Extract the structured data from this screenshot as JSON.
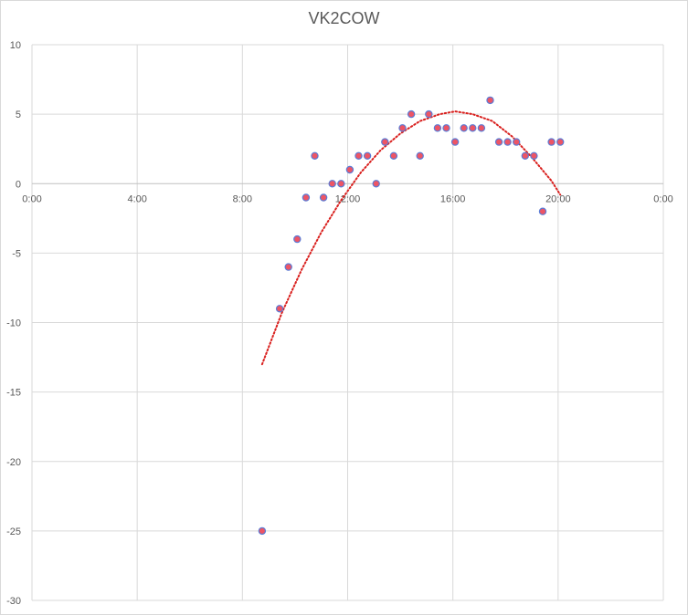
{
  "chart_data": {
    "type": "scatter",
    "title": "VK2COW",
    "xlabel": "",
    "ylabel": "",
    "x_tick_labels": [
      "0:00",
      "4:00",
      "8:00",
      "12:00",
      "16:00",
      "20:00",
      "0:00"
    ],
    "x_ticks_hours": [
      0,
      4,
      8,
      12,
      16,
      20,
      24
    ],
    "xlim_hours": [
      0,
      24
    ],
    "y_ticks": [
      10,
      5,
      0,
      -5,
      -10,
      -15,
      -20,
      -25,
      -30
    ],
    "ylim": [
      -30,
      10
    ],
    "grid": true,
    "series": [
      {
        "points": [
          [
            "8:45",
            -25
          ],
          [
            "9:25",
            -9
          ],
          [
            "9:45",
            -6
          ],
          [
            "10:05",
            -4
          ],
          [
            "10:25",
            -1
          ],
          [
            "10:45",
            2
          ],
          [
            "11:05",
            -1
          ],
          [
            "11:25",
            0
          ],
          [
            "11:45",
            0
          ],
          [
            "12:05",
            1
          ],
          [
            "12:25",
            2
          ],
          [
            "12:45",
            2
          ],
          [
            "13:05",
            0
          ],
          [
            "13:25",
            3
          ],
          [
            "13:45",
            2
          ],
          [
            "14:05",
            4
          ],
          [
            "14:25",
            5
          ],
          [
            "14:45",
            2
          ],
          [
            "15:05",
            5
          ],
          [
            "15:25",
            4
          ],
          [
            "15:45",
            4
          ],
          [
            "16:05",
            3
          ],
          [
            "16:25",
            4
          ],
          [
            "16:45",
            4
          ],
          [
            "17:05",
            4
          ],
          [
            "17:25",
            6
          ],
          [
            "17:45",
            3
          ],
          [
            "18:05",
            3
          ],
          [
            "18:25",
            3
          ],
          [
            "18:45",
            2
          ],
          [
            "19:05",
            2
          ],
          [
            "19:25",
            -2
          ],
          [
            "19:45",
            3
          ],
          [
            "20:05",
            3
          ]
        ],
        "marker_fill": "#ed5565",
        "marker_edge": "#5b7bd5"
      }
    ],
    "trendline": {
      "type": "polynomial",
      "style": "dotted",
      "color": "#d9201e",
      "points": [
        [
          "8:45",
          -13
        ],
        [
          "9:30",
          -9.3
        ],
        [
          "10:15",
          -6.2
        ],
        [
          "11:00",
          -3.5
        ],
        [
          "11:45",
          -1.2
        ],
        [
          "12:30",
          0.8
        ],
        [
          "13:15",
          2.4
        ],
        [
          "14:00",
          3.6
        ],
        [
          "14:45",
          4.5
        ],
        [
          "15:30",
          5.0
        ],
        [
          "16:05",
          5.2
        ],
        [
          "16:45",
          5.0
        ],
        [
          "17:30",
          4.5
        ],
        [
          "18:15",
          3.4
        ],
        [
          "19:00",
          1.9
        ],
        [
          "19:45",
          0.2
        ],
        [
          "20:05",
          -0.8
        ]
      ]
    }
  }
}
